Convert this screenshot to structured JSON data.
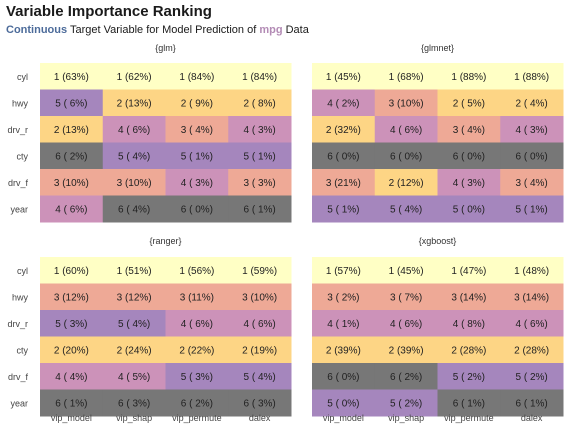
{
  "title": "Variable Importance Ranking",
  "subtitle": {
    "highlight_target": "Continuous",
    "middle": " Target Variable for Model Prediction of ",
    "highlight_data": "mpg",
    "end": " Data"
  },
  "colors": {
    "rank1": "#ffffc5",
    "rank2": "#fdd585",
    "rank3": "#eea996",
    "rank4": "#cc92b9",
    "rank5": "#a586bd",
    "rank6": "#777777",
    "panel_bg": "#f7f7f7",
    "highlight_target": "#4c6b9a",
    "highlight_data": "#b38bb5"
  },
  "chart_data": [
    {
      "type": "heatmap",
      "title": "{glm}",
      "columns": [
        "vip_model",
        "vip_shap",
        "vip_permute",
        "dalex"
      ],
      "rows": [
        "cyl",
        "hwy",
        "drv_r",
        "cty",
        "drv_f",
        "year"
      ],
      "ranks": [
        [
          1,
          1,
          1,
          1
        ],
        [
          5,
          2,
          2,
          2
        ],
        [
          2,
          4,
          3,
          4
        ],
        [
          6,
          5,
          5,
          5
        ],
        [
          3,
          3,
          4,
          3
        ],
        [
          4,
          6,
          6,
          6
        ]
      ],
      "labels": [
        [
          "1 (63%)",
          "1 (62%)",
          "1 (84%)",
          "1 (84%)"
        ],
        [
          "5 ( 6%)",
          "2 (13%)",
          "2 ( 9%)",
          "2 ( 8%)"
        ],
        [
          "2 (13%)",
          "4 ( 6%)",
          "3 ( 4%)",
          "4 ( 3%)"
        ],
        [
          "6 ( 2%)",
          "5 ( 4%)",
          "5 ( 1%)",
          "5 ( 1%)"
        ],
        [
          "3 (10%)",
          "3 (10%)",
          "4 ( 3%)",
          "3 ( 3%)"
        ],
        [
          "4 ( 6%)",
          "6 ( 4%)",
          "6 ( 0%)",
          "6 ( 1%)"
        ]
      ]
    },
    {
      "type": "heatmap",
      "title": "{glmnet}",
      "columns": [
        "vip_model",
        "vip_shap",
        "vip_permute",
        "dalex"
      ],
      "rows": [
        "cyl",
        "hwy",
        "drv_r",
        "cty",
        "drv_f",
        "year"
      ],
      "ranks": [
        [
          1,
          1,
          1,
          1
        ],
        [
          4,
          3,
          2,
          2
        ],
        [
          2,
          4,
          3,
          4
        ],
        [
          6,
          6,
          6,
          6
        ],
        [
          3,
          2,
          4,
          3
        ],
        [
          5,
          5,
          5,
          5
        ]
      ],
      "labels": [
        [
          "1 (45%)",
          "1 (68%)",
          "1 (88%)",
          "1 (88%)"
        ],
        [
          "4 ( 2%)",
          "3 (10%)",
          "2 ( 5%)",
          "2 ( 4%)"
        ],
        [
          "2 (32%)",
          "4 ( 6%)",
          "3 ( 4%)",
          "4 ( 3%)"
        ],
        [
          "6 ( 0%)",
          "6 ( 0%)",
          "6 ( 0%)",
          "6 ( 0%)"
        ],
        [
          "3 (21%)",
          "2 (12%)",
          "4 ( 3%)",
          "3 ( 4%)"
        ],
        [
          "5 ( 1%)",
          "5 ( 4%)",
          "5 ( 0%)",
          "5 ( 1%)"
        ]
      ]
    },
    {
      "type": "heatmap",
      "title": "{ranger}",
      "columns": [
        "vip_model",
        "vip_shap",
        "vip_permute",
        "dalex"
      ],
      "rows": [
        "cyl",
        "hwy",
        "drv_r",
        "cty",
        "drv_f",
        "year"
      ],
      "ranks": [
        [
          1,
          1,
          1,
          1
        ],
        [
          3,
          3,
          3,
          3
        ],
        [
          5,
          5,
          4,
          4
        ],
        [
          2,
          2,
          2,
          2
        ],
        [
          4,
          4,
          5,
          5
        ],
        [
          6,
          6,
          6,
          6
        ]
      ],
      "labels": [
        [
          "1 (60%)",
          "1 (51%)",
          "1 (56%)",
          "1 (59%)"
        ],
        [
          "3 (12%)",
          "3 (12%)",
          "3 (11%)",
          "3 (10%)"
        ],
        [
          "5 ( 3%)",
          "5 ( 4%)",
          "4 ( 6%)",
          "4 ( 6%)"
        ],
        [
          "2 (20%)",
          "2 (24%)",
          "2 (22%)",
          "2 (19%)"
        ],
        [
          "4 ( 4%)",
          "4 ( 5%)",
          "5 ( 3%)",
          "5 ( 4%)"
        ],
        [
          "6 ( 1%)",
          "6 ( 3%)",
          "6 ( 2%)",
          "6 ( 3%)"
        ]
      ]
    },
    {
      "type": "heatmap",
      "title": "{xgboost}",
      "columns": [
        "vip_model",
        "vip_shap",
        "vip_permute",
        "dalex"
      ],
      "rows": [
        "cyl",
        "hwy",
        "drv_r",
        "cty",
        "drv_f",
        "year"
      ],
      "ranks": [
        [
          1,
          1,
          1,
          1
        ],
        [
          3,
          3,
          3,
          3
        ],
        [
          4,
          4,
          4,
          4
        ],
        [
          2,
          2,
          2,
          2
        ],
        [
          6,
          6,
          5,
          5
        ],
        [
          5,
          5,
          6,
          6
        ]
      ],
      "labels": [
        [
          "1 (57%)",
          "1 (45%)",
          "1 (47%)",
          "1 (48%)"
        ],
        [
          "3 ( 2%)",
          "3 ( 7%)",
          "3 (14%)",
          "3 (14%)"
        ],
        [
          "4 ( 1%)",
          "4 ( 6%)",
          "4 ( 8%)",
          "4 ( 6%)"
        ],
        [
          "2 (39%)",
          "2 (39%)",
          "2 (28%)",
          "2 (28%)"
        ],
        [
          "6 ( 0%)",
          "6 ( 2%)",
          "5 ( 2%)",
          "5 ( 2%)"
        ],
        [
          "5 ( 0%)",
          "5 ( 2%)",
          "6 ( 1%)",
          "6 ( 1%)"
        ]
      ]
    }
  ]
}
